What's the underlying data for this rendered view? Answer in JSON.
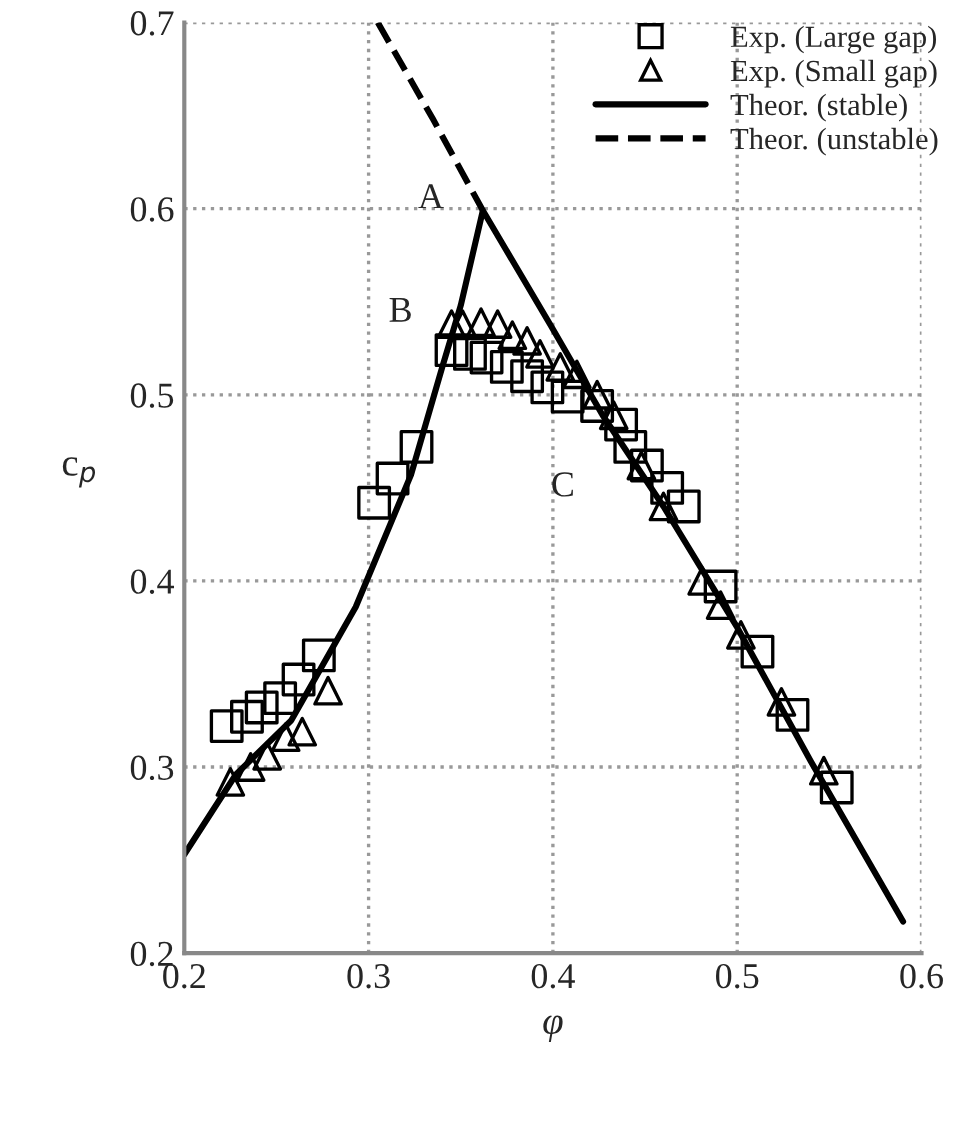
{
  "chart_data": {
    "type": "scatter",
    "xlabel": "φ",
    "ylabel": "c$_{p}$",
    "xlim": [
      0.2,
      0.6
    ],
    "ylim": [
      0.2,
      0.7
    ],
    "xticks": [
      0.2,
      0.3,
      0.4,
      0.5,
      0.6
    ],
    "yticks": [
      0.2,
      0.3,
      0.4,
      0.5,
      0.6,
      0.7
    ],
    "grid": true,
    "legend": "top right",
    "series": [
      {
        "name": "Exp. (Large gap)",
        "marker": "square",
        "color": "#000000",
        "x": [
          0.223,
          0.234,
          0.242,
          0.252,
          0.262,
          0.273,
          0.303,
          0.313,
          0.326,
          0.345,
          0.355,
          0.364,
          0.375,
          0.386,
          0.397,
          0.408,
          0.424,
          0.437,
          0.442,
          0.451,
          0.462,
          0.471,
          0.491,
          0.511,
          0.53,
          0.554
        ],
        "values": [
          0.322,
          0.327,
          0.332,
          0.337,
          0.347,
          0.36,
          0.442,
          0.455,
          0.472,
          0.524,
          0.522,
          0.52,
          0.515,
          0.51,
          0.504,
          0.499,
          0.494,
          0.484,
          0.472,
          0.462,
          0.45,
          0.44,
          0.397,
          0.362,
          0.328,
          0.289
        ]
      },
      {
        "name": "Exp. (Small gap)",
        "marker": "triangle",
        "color": "#000000",
        "x": [
          0.225,
          0.236,
          0.245,
          0.255,
          0.264,
          0.278,
          0.345,
          0.351,
          0.361,
          0.37,
          0.378,
          0.386,
          0.393,
          0.404,
          0.413,
          0.424,
          0.433,
          0.448,
          0.46,
          0.481,
          0.491,
          0.502,
          0.524,
          0.547
        ],
        "values": [
          0.292,
          0.3,
          0.306,
          0.316,
          0.319,
          0.341,
          0.538,
          0.538,
          0.539,
          0.538,
          0.532,
          0.529,
          0.522,
          0.515,
          0.511,
          0.5,
          0.489,
          0.462,
          0.44,
          0.4,
          0.387,
          0.371,
          0.335,
          0.298
        ]
      },
      {
        "name": "Theor. (stable)",
        "type": "line",
        "line_style": "solid",
        "color": "#000000",
        "x": [
          0.2,
          0.228,
          0.258,
          0.293,
          0.323,
          0.34,
          0.35,
          0.362,
          0.399,
          0.427,
          0.46,
          0.5,
          0.54,
          0.59
        ],
        "values": [
          0.253,
          0.296,
          0.325,
          0.386,
          0.457,
          0.515,
          0.548,
          0.599,
          0.537,
          0.489,
          0.44,
          0.375,
          0.303,
          0.217
        ]
      },
      {
        "name": "Theor. (unstable)",
        "type": "line",
        "line_style": "dashed",
        "color": "#000000",
        "x": [
          0.305,
          0.335,
          0.362
        ],
        "values": [
          0.7,
          0.648,
          0.599
        ]
      }
    ],
    "annotations": [
      {
        "text": "A",
        "x": 0.362,
        "y": 0.599
      },
      {
        "text": "B",
        "x": 0.345,
        "y": 0.538
      },
      {
        "text": "C",
        "x": 0.427,
        "y": 0.489
      }
    ]
  }
}
